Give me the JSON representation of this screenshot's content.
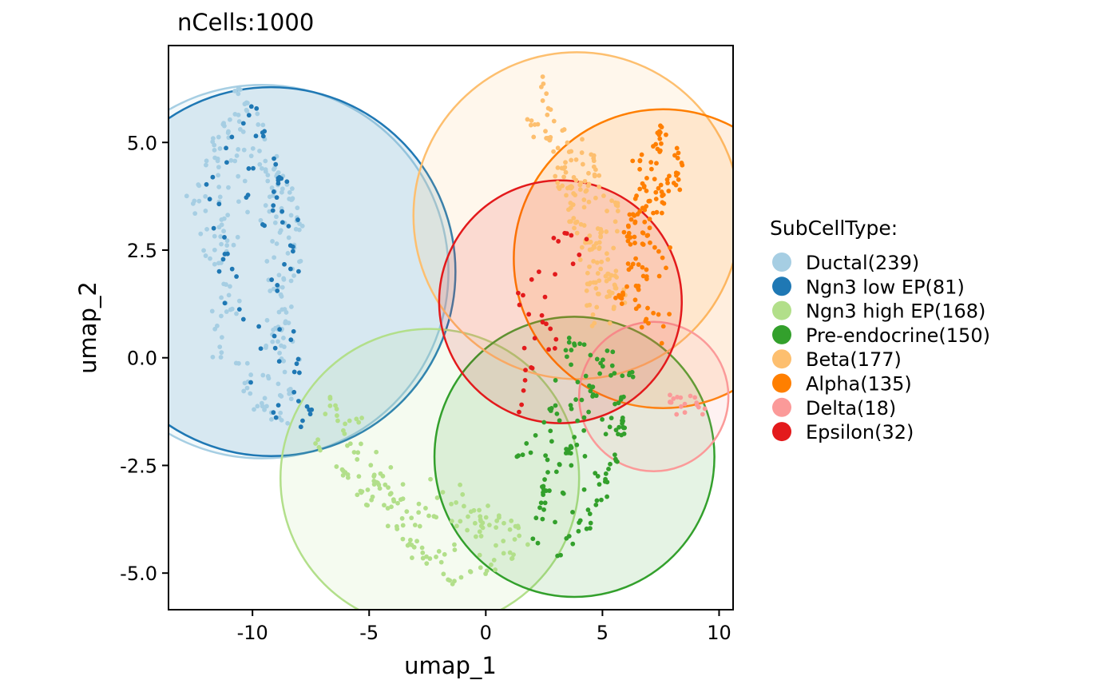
{
  "chart_data": {
    "type": "scatter",
    "title": "nCells:1000",
    "xlabel": "umap_1",
    "ylabel": "umap_2",
    "xlim": [
      -13.6,
      10.6
    ],
    "ylim": [
      -5.85,
      7.25
    ],
    "x_ticks": [
      -10,
      -5,
      0,
      5,
      10
    ],
    "x_tick_labels": [
      "-10",
      "-5",
      "0",
      "5",
      "10"
    ],
    "y_ticks": [
      -5,
      -2.5,
      0,
      2.5,
      5
    ],
    "y_tick_labels": [
      "-5.0",
      "-2.5",
      "0.0",
      "2.5",
      "5.0"
    ],
    "legend_title": "SubCellType:",
    "legend_position": "right",
    "series": [
      {
        "name": "Ductal(239)",
        "color": "#A6CEE3",
        "count": 239,
        "shape": [
          [
            -10.6,
            6.3
          ],
          [
            -11,
            5.6
          ],
          [
            -11.8,
            5
          ],
          [
            -12,
            4.4
          ],
          [
            -12.6,
            3.7
          ],
          [
            -11.3,
            3.2
          ],
          [
            -11.8,
            2.3
          ],
          [
            -11.2,
            1.3
          ],
          [
            -11.5,
            0.1
          ],
          [
            -10.3,
            -0.8
          ],
          [
            -9.6,
            -1.4
          ],
          [
            -8.6,
            -1.6
          ],
          [
            -8.3,
            -0.7
          ],
          [
            -8.8,
            0.3
          ],
          [
            -8.7,
            1.6
          ],
          [
            -8.3,
            2.6
          ],
          [
            -7.9,
            3.1
          ],
          [
            -8.3,
            3.7
          ],
          [
            -9.1,
            4.3
          ],
          [
            -9.5,
            5.3
          ],
          [
            -10.2,
            5.9
          ]
        ],
        "circle": {
          "cx": -9.6,
          "cy": 2.0,
          "r": 8.0
        }
      },
      {
        "name": "Ngn3 low EP(81)",
        "color": "#1F78B4",
        "count": 81,
        "shape": [
          [
            -10.1,
            5.9
          ],
          [
            -9.5,
            5.3
          ],
          [
            -9,
            4.3
          ],
          [
            -8.2,
            3.5
          ],
          [
            -8.3,
            2.6
          ],
          [
            -8.5,
            1.2
          ],
          [
            -8.4,
            0.1
          ],
          [
            -8,
            -1
          ],
          [
            -7.4,
            -1.4
          ],
          [
            -7.8,
            -1.8
          ],
          [
            -9.2,
            -1.4
          ],
          [
            -10.2,
            -0.7
          ],
          [
            -10.9,
            0.8
          ],
          [
            -11.4,
            2.2
          ],
          [
            -12,
            3.8
          ],
          [
            -11.2,
            5
          ],
          [
            -10.4,
            5.6
          ]
        ],
        "circle": {
          "cx": -9.2,
          "cy": 2.0,
          "r": 7.9
        }
      },
      {
        "name": "Ngn3 high EP(168)",
        "color": "#B2DF8A",
        "count": 168,
        "shape": [
          [
            -6.8,
            -0.9
          ],
          [
            -7.3,
            -2
          ],
          [
            -6.3,
            -2.6
          ],
          [
            -5,
            -3.3
          ],
          [
            -4.2,
            -3.9
          ],
          [
            -3.2,
            -4.4
          ],
          [
            -2.5,
            -4.8
          ],
          [
            -1.5,
            -5.2
          ],
          [
            0.2,
            -5
          ],
          [
            1.2,
            -4.7
          ],
          [
            1.8,
            -4.3
          ],
          [
            1.3,
            -3.9
          ],
          [
            0.3,
            -3.8
          ],
          [
            -0.8,
            -3.5
          ],
          [
            -2.1,
            -3.7
          ],
          [
            -3.5,
            -3.3
          ],
          [
            -4.8,
            -2.7
          ],
          [
            -6.1,
            -1.8
          ]
        ],
        "circle": {
          "cx": -2.4,
          "cy": -2.8,
          "r": 6.4
        }
      },
      {
        "name": "Pre-endocrine(150)",
        "color": "#33A02C",
        "count": 150,
        "shape": [
          [
            3.7,
            0.4
          ],
          [
            5.3,
            0.2
          ],
          [
            6.3,
            -0.4
          ],
          [
            5.9,
            -1.5
          ],
          [
            5.6,
            -2.4
          ],
          [
            5,
            -3.4
          ],
          [
            4.1,
            -4.1
          ],
          [
            3,
            -4.6
          ],
          [
            2,
            -4.2
          ],
          [
            2.5,
            -3.1
          ],
          [
            3.5,
            -2.1
          ],
          [
            1.3,
            -2.2
          ],
          [
            2.8,
            -1.2
          ],
          [
            4.5,
            -0.7
          ]
        ],
        "circle": {
          "cx": 3.8,
          "cy": -2.3,
          "r": 6.0
        }
      },
      {
        "name": "Beta(177)",
        "color": "#FDBF6F",
        "count": 177,
        "shape": [
          [
            2.3,
            6.5
          ],
          [
            2.6,
            5.8
          ],
          [
            1.8,
            5.5
          ],
          [
            2.7,
            5.1
          ],
          [
            3.6,
            4.9
          ],
          [
            4.6,
            4.7
          ],
          [
            4.3,
            4
          ],
          [
            3.2,
            3.9
          ],
          [
            3.7,
            3.1
          ],
          [
            4.4,
            2.6
          ],
          [
            5,
            2
          ],
          [
            5.6,
            1.6
          ],
          [
            6,
            1
          ],
          [
            5.5,
            0.3
          ],
          [
            4.6,
            0.8
          ],
          [
            4.5,
            1.8
          ],
          [
            5,
            2.8
          ],
          [
            5.7,
            3.5
          ],
          [
            4.8,
            4.2
          ],
          [
            3.3,
            4.4
          ]
        ],
        "circle": {
          "cx": 3.9,
          "cy": 3.3,
          "r": 7.0
        }
      },
      {
        "name": "Alpha(135)",
        "color": "#FF7F00",
        "count": 135,
        "shape": [
          [
            7.5,
            5.3
          ],
          [
            8.3,
            4.8
          ],
          [
            7.9,
            4.2
          ],
          [
            7.5,
            3.5
          ],
          [
            7,
            2.9
          ],
          [
            7.6,
            2.1
          ],
          [
            6.8,
            1.7
          ],
          [
            6.3,
            1.1
          ],
          [
            6.5,
            2.3
          ],
          [
            6.3,
            3.1
          ],
          [
            6.9,
            3.9
          ],
          [
            6.5,
            4.6
          ],
          [
            7.1,
            5
          ],
          [
            8.6,
            4.4
          ],
          [
            6,
            2.9
          ],
          [
            5.7,
            1.4
          ],
          [
            6.7,
            0.6
          ],
          [
            7.7,
            0.3
          ]
        ],
        "circle": {
          "cx": 7.6,
          "cy": 2.3,
          "r": 6.4
        }
      },
      {
        "name": "Delta(18)",
        "color": "#FB9A99",
        "count": 18,
        "shape": [
          [
            7.8,
            -1
          ],
          [
            8.3,
            -1.2
          ],
          [
            8.6,
            -0.9
          ],
          [
            8.9,
            -1.3
          ],
          [
            9.4,
            -1.2
          ],
          [
            7.5,
            -1.1
          ],
          [
            8.1,
            -0.8
          ],
          [
            9.1,
            -1.1
          ]
        ],
        "circle": {
          "cx": 7.2,
          "cy": -0.9,
          "r": 3.2
        }
      },
      {
        "name": "Epsilon(32)",
        "color": "#E31A1C",
        "count": 32,
        "shape": [
          [
            2.8,
            3.3
          ],
          [
            2.5,
            2.2
          ],
          [
            3.1,
            2.6
          ],
          [
            3.6,
            3
          ],
          [
            1.4,
            1.5
          ],
          [
            1.9,
            1
          ],
          [
            2.8,
            0.7
          ],
          [
            2.1,
            0.3
          ],
          [
            1.7,
            -0.2
          ],
          [
            1.8,
            -0.5
          ],
          [
            1.6,
            -0.8
          ],
          [
            1.5,
            -1.3
          ],
          [
            4.2,
            2.8
          ],
          [
            2.2,
            1.7
          ],
          [
            3,
            0.3
          ]
        ],
        "circle": {
          "cx": 3.2,
          "cy": 1.3,
          "r": 5.2
        }
      }
    ]
  }
}
